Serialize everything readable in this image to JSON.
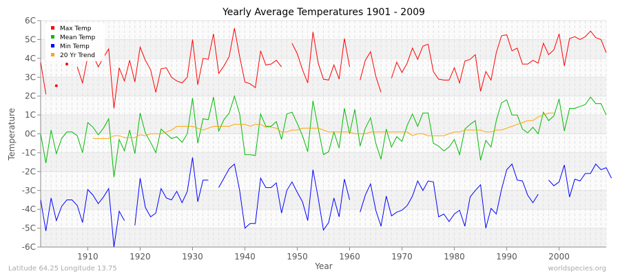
{
  "chart_data": {
    "type": "line",
    "title": "Yearly Average Temperatures 1901 - 2009",
    "xlabel": "Year",
    "ylabel": "Temperature",
    "xlim": [
      1901,
      2009
    ],
    "ylim": [
      -6,
      6
    ],
    "x_ticks": [
      1910,
      1920,
      1930,
      1940,
      1950,
      1960,
      1970,
      1980,
      1990,
      2000
    ],
    "y_ticks": [
      {
        "v": 6,
        "label": "6C"
      },
      {
        "v": 5,
        "label": "5C"
      },
      {
        "v": 4,
        "label": "4C"
      },
      {
        "v": 3,
        "label": "3C"
      },
      {
        "v": 2,
        "label": "2C"
      },
      {
        "v": 1,
        "label": "1C"
      },
      {
        "v": 0,
        "label": "0C"
      },
      {
        "v": -1,
        "label": "-1C"
      },
      {
        "v": -2,
        "label": "-2C"
      },
      {
        "v": -3,
        "label": "-3C"
      },
      {
        "v": -4,
        "label": "-4C"
      },
      {
        "v": -5,
        "label": "-5C"
      },
      {
        "v": -6,
        "label": "-6C"
      }
    ],
    "grid": true,
    "legend_position": "top-left",
    "x_start": 1901,
    "series": [
      {
        "name": "Max Temp",
        "color": "#ff0000",
        "values": [
          3.8,
          2.1,
          null,
          2.55,
          null,
          3.7,
          null,
          3.55,
          2.7,
          4.1,
          4.2,
          3.55,
          4.05,
          4.5,
          1.35,
          3.5,
          2.8,
          3.9,
          2.75,
          4.6,
          3.9,
          3.4,
          2.2,
          3.45,
          3.5,
          3.0,
          2.8,
          2.7,
          3.0,
          5.0,
          2.6,
          4.0,
          3.95,
          5.3,
          3.2,
          3.6,
          4.1,
          5.6,
          4.1,
          2.75,
          2.65,
          2.45,
          4.4,
          3.65,
          3.7,
          3.9,
          3.55,
          null,
          4.8,
          4.25,
          3.4,
          2.7,
          5.4,
          3.75,
          2.9,
          2.85,
          3.65,
          2.9,
          5.05,
          3.55,
          null,
          2.85,
          3.9,
          4.35,
          3.05,
          2.2,
          null,
          2.95,
          3.8,
          3.25,
          3.75,
          4.55,
          3.95,
          4.65,
          4.75,
          3.3,
          2.9,
          2.85,
          2.85,
          3.5,
          2.7,
          3.85,
          3.95,
          4.2,
          2.25,
          3.3,
          2.85,
          4.3,
          5.2,
          5.25,
          4.4,
          4.55,
          3.7,
          3.7,
          3.9,
          3.75,
          4.8,
          4.2,
          4.45,
          5.3,
          3.6,
          5.05,
          5.15,
          5.0,
          5.15,
          5.45,
          5.1,
          5.0,
          4.3
        ]
      },
      {
        "name": "Mean Temp",
        "color": "#00bb00",
        "values": [
          0.0,
          -1.55,
          0.2,
          -1.05,
          -0.25,
          0.1,
          0.1,
          -0.1,
          -1.0,
          0.6,
          0.35,
          -0.05,
          0.3,
          0.8,
          -2.3,
          -0.3,
          -0.9,
          0.2,
          -1.05,
          1.1,
          0.05,
          -0.45,
          -1.0,
          0.25,
          0.0,
          -0.25,
          -0.15,
          -0.45,
          0.0,
          1.9,
          -0.5,
          0.8,
          0.75,
          1.95,
          0.15,
          0.75,
          1.1,
          2.0,
          1.05,
          -1.1,
          -1.1,
          -1.15,
          1.05,
          0.4,
          0.4,
          0.65,
          -0.3,
          1.05,
          1.15,
          0.55,
          -0.1,
          -0.95,
          1.75,
          0.3,
          -1.1,
          -0.95,
          0.1,
          -0.75,
          1.35,
          0.0,
          1.3,
          -0.65,
          0.3,
          0.85,
          -0.5,
          -1.35,
          0.25,
          -0.7,
          -0.15,
          -0.4,
          0.45,
          1.05,
          0.4,
          1.1,
          1.1,
          -0.5,
          -0.65,
          -0.9,
          -0.7,
          -0.3,
          -1.1,
          0.25,
          0.5,
          0.7,
          -1.4,
          -0.35,
          -0.7,
          0.7,
          1.65,
          1.8,
          1.0,
          1.0,
          0.25,
          0.05,
          0.35,
          0.0,
          1.15,
          0.7,
          0.95,
          1.85,
          0.15,
          1.35,
          1.35,
          1.45,
          1.55,
          1.95,
          1.6,
          1.6,
          1.0
        ]
      },
      {
        "name": "Min Temp",
        "color": "#0000ff",
        "values": [
          -3.5,
          -5.15,
          -3.4,
          -4.6,
          -3.85,
          -3.5,
          -3.5,
          -3.8,
          -4.7,
          -2.95,
          -3.25,
          -3.7,
          -3.35,
          -2.9,
          -6.0,
          -4.1,
          -4.6,
          null,
          -4.85,
          -2.35,
          -3.9,
          -4.4,
          -4.2,
          -2.9,
          -3.4,
          -3.5,
          -3.05,
          -3.65,
          -3.05,
          -1.25,
          -3.6,
          -2.45,
          -2.45,
          null,
          -2.85,
          -2.35,
          -1.85,
          -1.6,
          -3.0,
          -5.0,
          -4.75,
          -4.75,
          -2.35,
          -2.85,
          -2.85,
          -2.6,
          -4.2,
          -3.0,
          -2.55,
          -3.1,
          -3.6,
          -4.6,
          -1.9,
          -3.4,
          -5.1,
          -4.7,
          -3.4,
          -4.4,
          -2.4,
          -3.5,
          null,
          -4.15,
          -3.25,
          -2.65,
          -4.05,
          -4.9,
          -3.3,
          -4.35,
          -4.15,
          -4.05,
          -3.8,
          -3.3,
          -2.5,
          -3.0,
          -2.5,
          -2.55,
          -4.4,
          -4.25,
          -4.65,
          -4.25,
          -4.05,
          -4.9,
          -3.35,
          -3.0,
          -2.7,
          -5.0,
          -3.95,
          -4.25,
          -2.95,
          -1.9,
          -1.6,
          -2.45,
          -2.5,
          -3.25,
          -3.65,
          -3.2,
          null,
          -2.45,
          -2.75,
          -2.55,
          -1.65,
          -3.35,
          -2.4,
          -2.5,
          -2.1,
          -2.1,
          -1.6,
          -1.9,
          -1.8,
          -2.35
        ]
      },
      {
        "name": "20 Yr Trend",
        "color": "#ffa500",
        "values": [
          null,
          null,
          null,
          null,
          null,
          null,
          null,
          null,
          null,
          null,
          -0.25,
          -0.25,
          -0.25,
          -0.25,
          -0.1,
          -0.1,
          -0.2,
          -0.2,
          -0.2,
          -0.05,
          -0.1,
          0.0,
          0.0,
          0.0,
          0.1,
          0.2,
          0.4,
          0.4,
          0.4,
          0.4,
          0.3,
          0.2,
          0.3,
          0.4,
          0.4,
          0.4,
          0.4,
          0.5,
          0.5,
          0.5,
          0.4,
          0.5,
          0.5,
          0.35,
          0.35,
          0.3,
          0.1,
          0.1,
          0.2,
          0.2,
          0.3,
          0.3,
          0.3,
          0.3,
          0.2,
          0.1,
          0.1,
          0.1,
          0.1,
          0.1,
          0.0,
          0.0,
          0.0,
          0.1,
          0.1,
          0.1,
          0.1,
          0.1,
          0.1,
          0.1,
          0.1,
          -0.1,
          0.0,
          0.0,
          -0.1,
          -0.1,
          -0.1,
          -0.1,
          0.0,
          0.1,
          0.1,
          0.2,
          0.2,
          0.2,
          0.2,
          0.1,
          0.1,
          0.2,
          0.2,
          0.3,
          0.4,
          0.5,
          0.6,
          0.7,
          0.7,
          0.9,
          1.0,
          1.1,
          1.1,
          null,
          null,
          null,
          null,
          null,
          null,
          null,
          null,
          null,
          null
        ]
      }
    ]
  },
  "footer": {
    "location": "Latitude 64.25 Longitude 13.75",
    "source": "worldspecies.org"
  }
}
